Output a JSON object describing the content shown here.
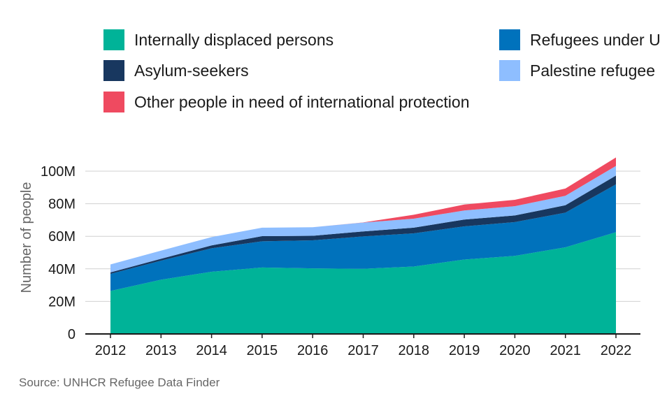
{
  "chart_data": {
    "type": "area",
    "stacked": true,
    "ylabel": "Number of people",
    "xlabel": "",
    "x": [
      "2012",
      "2013",
      "2014",
      "2015",
      "2016",
      "2017",
      "2018",
      "2019",
      "2020",
      "2021",
      "2022"
    ],
    "ylim": [
      0,
      100
    ],
    "y_ticks": [
      0,
      20,
      40,
      60,
      80,
      100
    ],
    "y_tick_labels": [
      "0",
      "20M",
      "40M",
      "60M",
      "80M",
      "100M"
    ],
    "unit": "millions",
    "grid": true,
    "legend_position": "top",
    "series": [
      {
        "name": "Internally displaced persons",
        "color": "#00b398",
        "values": [
          26.4,
          33.3,
          38.2,
          40.8,
          40.3,
          40.0,
          41.4,
          45.7,
          48.0,
          53.2,
          62.5
        ]
      },
      {
        "name": "Refugees under UNHCR's mandate",
        "color": "#0072bc",
        "values": [
          10.5,
          11.7,
          14.4,
          16.1,
          17.2,
          19.9,
          20.4,
          20.4,
          20.7,
          21.3,
          29.4
        ]
      },
      {
        "name": "Asylum-seekers",
        "color": "#18375f",
        "values": [
          0.9,
          1.2,
          1.8,
          3.2,
          2.8,
          3.1,
          3.5,
          4.2,
          4.1,
          4.6,
          5.4
        ]
      },
      {
        "name": "Palestine refugees under UNRWA's mandate",
        "color": "#8ebeff",
        "values": [
          4.9,
          5.0,
          5.1,
          5.2,
          5.3,
          5.4,
          5.5,
          5.6,
          5.7,
          5.8,
          5.9
        ]
      },
      {
        "name": "Other people in need of international protection",
        "color": "#ef4a60",
        "values": [
          0,
          0,
          0,
          0,
          0,
          0.1,
          2.4,
          3.6,
          3.9,
          4.4,
          5.2
        ]
      }
    ]
  },
  "legend": [
    {
      "label": "Internally displaced persons",
      "color": "#00b398"
    },
    {
      "label": "Refugees under U",
      "color": "#0072bc"
    },
    {
      "label": "Asylum-seekers",
      "color": "#18375f"
    },
    {
      "label": "Palestine refugee",
      "color": "#8ebeff"
    },
    {
      "label": "Other people in need of international protection",
      "color": "#ef4a60"
    }
  ],
  "source": "Source: UNHCR Refugee Data Finder"
}
